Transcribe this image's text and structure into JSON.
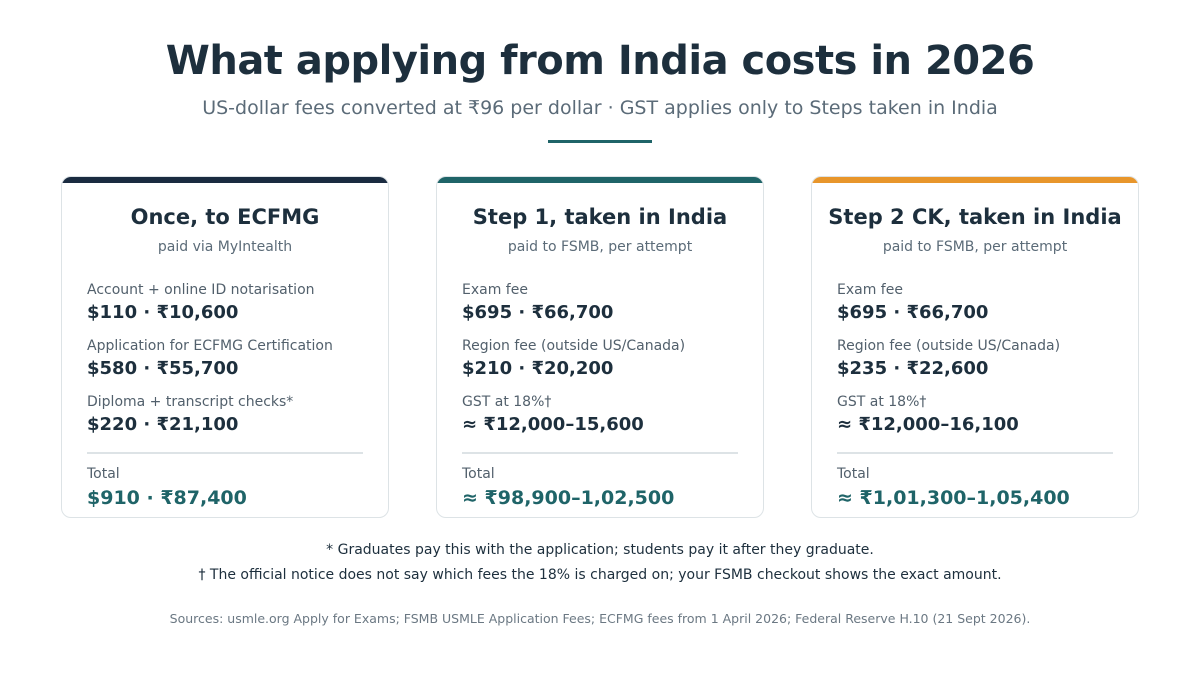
{
  "header": {
    "title": "What applying from India costs in 2026",
    "subtitle": "US-dollar fees converted at ₹96 per dollar · GST applies only to Steps taken in India"
  },
  "colors": {
    "card1_accent": "#1a2b40",
    "card2_accent": "#1f6468",
    "card3_accent": "#e8962b",
    "total_text": "#1f6468"
  },
  "cards": [
    {
      "title": "Once, to ECFMG",
      "subtitle": "paid via MyIntealth",
      "items": [
        {
          "label": "Account + online ID notarisation",
          "value": "$110 · ₹10,600"
        },
        {
          "label": "Application for ECFMG Certification",
          "value": "$580 · ₹55,700"
        },
        {
          "label": "Diploma + transcript checks*",
          "value": "$220 · ₹21,100"
        }
      ],
      "total_label": "Total",
      "total_value": "$910 · ₹87,400"
    },
    {
      "title": "Step 1, taken in India",
      "subtitle": "paid to FSMB, per attempt",
      "items": [
        {
          "label": "Exam fee",
          "value": "$695 · ₹66,700"
        },
        {
          "label": "Region fee (outside US/Canada)",
          "value": "$210 · ₹20,200"
        },
        {
          "label": "GST at 18%†",
          "value": "≈ ₹12,000–15,600"
        }
      ],
      "total_label": "Total",
      "total_value": "≈ ₹98,900–1,02,500"
    },
    {
      "title": "Step 2 CK, taken in India",
      "subtitle": "paid to FSMB, per attempt",
      "items": [
        {
          "label": "Exam fee",
          "value": "$695 · ₹66,700"
        },
        {
          "label": "Region fee (outside US/Canada)",
          "value": "$235 · ₹22,600"
        },
        {
          "label": "GST at 18%†",
          "value": "≈ ₹12,000–16,100"
        }
      ],
      "total_label": "Total",
      "total_value": "≈ ₹1,01,300–1,05,400"
    }
  ],
  "footnotes": {
    "asterisk": "* Graduates pay this with the application; students pay it after they graduate.",
    "dagger": "† The official notice does not say which fees the 18% is charged on; your FSMB checkout shows the exact amount.",
    "sources": "Sources: usmle.org Apply for Exams; FSMB USMLE Application Fees; ECFMG fees from 1 April 2026; Federal Reserve H.10 (21 Sept 2026)."
  }
}
